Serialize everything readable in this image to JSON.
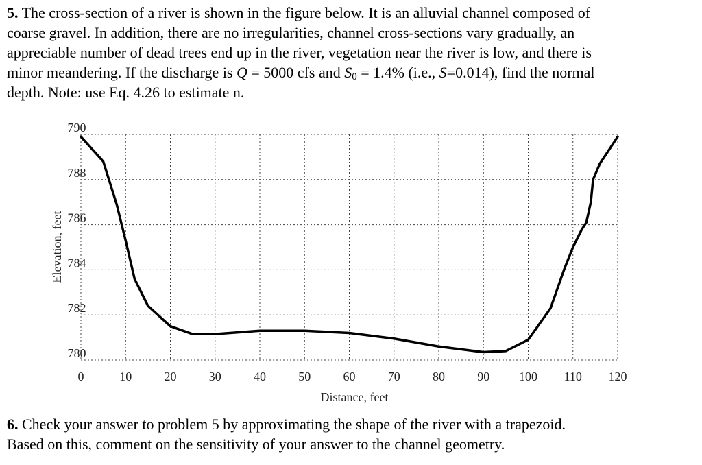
{
  "problem_5": {
    "number": "5.",
    "lines": [
      [
        " The cross-section of a river is shown in the figure below. It is an alluvial channel composed of"
      ],
      [
        "coarse gravel. In addition, there are no irregularities, channel cross-sections vary gradually, an"
      ],
      [
        "appreciable number of dead trees end up in the river, vegetation near the river is low, and there is"
      ],
      [
        "minor meandering. If the discharge is ",
        "Q",
        " = 5000 cfs and ",
        "S",
        "0",
        " = 1.4% (i.e., ",
        "S",
        "=0.014), find the normal"
      ],
      [
        "depth.  Note: use Eq. 4.26 to estimate n."
      ]
    ]
  },
  "chart_data": {
    "type": "line",
    "x": [
      0,
      5,
      8,
      10,
      12,
      15,
      20,
      25,
      30,
      40,
      50,
      60,
      70,
      80,
      90,
      95,
      100,
      105,
      108,
      110,
      112,
      113,
      114,
      114.5,
      116,
      118,
      120
    ],
    "series": [
      {
        "color": "#000000",
        "values": [
          789.9,
          788.8,
          786.9,
          785.3,
          783.6,
          782.4,
          781.5,
          781.15,
          781.15,
          781.3,
          781.3,
          781.2,
          780.95,
          780.6,
          780.35,
          780.4,
          780.9,
          782.3,
          784.0,
          785.0,
          785.8,
          786.1,
          787.0,
          788.0,
          788.7,
          789.3,
          789.9
        ]
      }
    ],
    "xlabel": "Distance, feet",
    "ylabel": "Elevation, feet",
    "xlim": [
      0,
      120
    ],
    "ylim": [
      780,
      790
    ],
    "xticks": [
      0,
      10,
      20,
      30,
      40,
      50,
      60,
      70,
      80,
      90,
      100,
      110,
      120
    ],
    "yticks": [
      780,
      782,
      784,
      786,
      788,
      790
    ],
    "grid": true
  },
  "problem_6": {
    "number": "6.",
    "lines": [
      [
        " Check your answer to problem 5 by approximating the shape of the river with a trapezoid."
      ],
      [
        "Based on this, comment on the sensitivity of your answer to the channel geometry."
      ]
    ]
  }
}
